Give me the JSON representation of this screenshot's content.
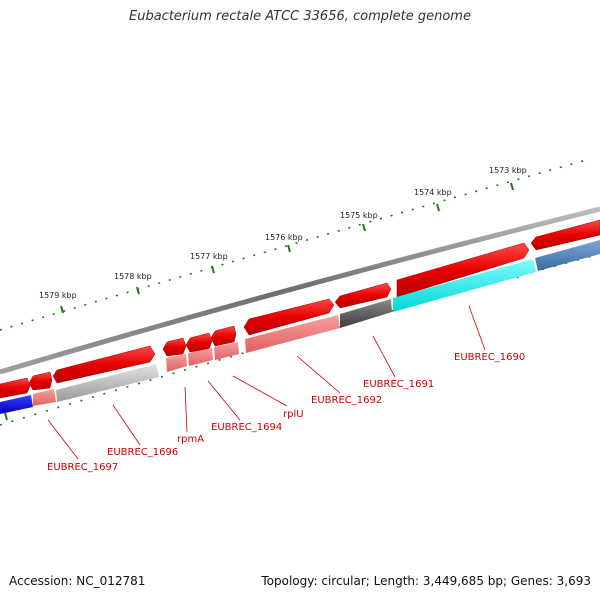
{
  "title": "Eubacterium rectale ATCC 33656, complete genome",
  "accession": "Accession: NC_012781",
  "topology": "Topology: circular; Length: 3,449,685 bp; Genes: 3,693",
  "kbp_labels": [
    "1573 kbp",
    "1574 kbp",
    "1575 kbp",
    "1576 kbp",
    "1577 kbp",
    "1578 kbp",
    "1579 kbp"
  ],
  "gene_labels": [
    "EUBREC_1690",
    "EUBREC_1691",
    "EUBREC_1692",
    "rplU",
    "EUBREC_1694",
    "rpmA",
    "EUBREC_1696",
    "EUBREC_1697"
  ],
  "colors": {
    "forward_gene": "#e60000",
    "reverse_gene_light": "#f08080",
    "backbone": "#7a7a7a",
    "tick": "#1a7a1a",
    "label": "#cc0000",
    "cyan_segment": "#00e5e5",
    "blue_segment": "#0000dd",
    "steelblue_segment": "#4a7fb5",
    "dark_gray_segment": "#555555",
    "light_gray_segment": "#bbbbbb"
  }
}
